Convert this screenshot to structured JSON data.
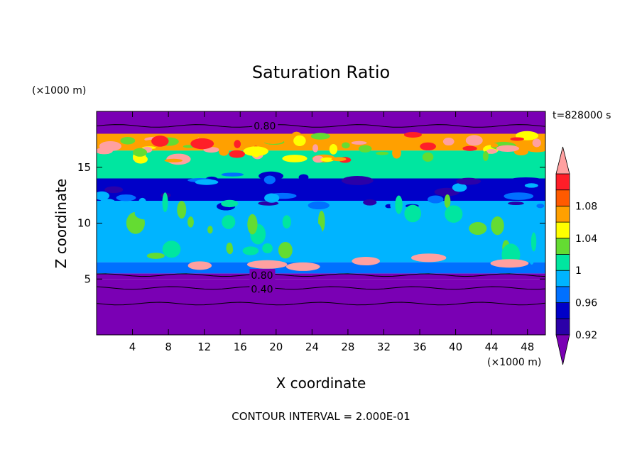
{
  "chart_data": {
    "type": "heatmap",
    "title": "Saturation Ratio",
    "xlabel": "X coordinate",
    "ylabel": "Z coordinate",
    "x_unit": "(×1000 m)",
    "y_unit": "(×1000 m)",
    "time_label": "t=828000 s",
    "footer": "CONTOUR INTERVAL = 2.000E-01",
    "xlim": [
      0,
      50
    ],
    "ylim": [
      0,
      20
    ],
    "x_ticks": [
      "4",
      "8",
      "12",
      "16",
      "20",
      "24",
      "28",
      "32",
      "36",
      "40",
      "44",
      "48"
    ],
    "y_ticks": [
      "5",
      "10",
      "15"
    ],
    "colorbar": {
      "levels": [
        0.92,
        0.94,
        0.96,
        0.98,
        1.0,
        1.02,
        1.04,
        1.06,
        1.08,
        1.1
      ],
      "labels": [
        "0.92",
        "0.96",
        "1",
        "1.04",
        "1.08"
      ],
      "colors": [
        "#7a00b4",
        "#2b00a8",
        "#0000c8",
        "#0070ff",
        "#00b4ff",
        "#00e6a0",
        "#64dc32",
        "#ffff00",
        "#ffa000",
        "#ff5a00",
        "#ff1e28",
        "#ffa0a0"
      ]
    },
    "contour_labels": [
      "0.80",
      "0.80",
      "0.40"
    ],
    "bands": [
      {
        "z": [
          0,
          5.0
        ],
        "value": 0.3
      },
      {
        "z": [
          5.0,
          5.5
        ],
        "value": 0.85
      },
      {
        "z": [
          5.5,
          6.5
        ],
        "value": 0.96
      },
      {
        "z": [
          6.5,
          12.0
        ],
        "value": 0.99
      },
      {
        "z": [
          12.0,
          14.0
        ],
        "value": 0.95
      },
      {
        "z": [
          14.0,
          16.5
        ],
        "value": 1.0
      },
      {
        "z": [
          16.5,
          18.0
        ],
        "value": 1.07
      },
      {
        "z": [
          18.0,
          20.0
        ],
        "value": 0.6
      }
    ]
  }
}
